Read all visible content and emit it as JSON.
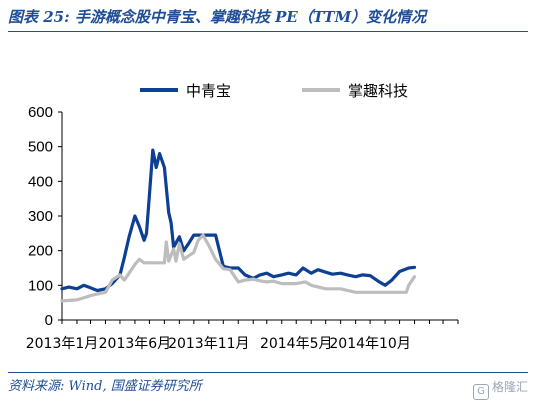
{
  "header": {
    "title": "图表 25:  手游概念股中青宝、掌趣科技 PE（TTM）变化情况"
  },
  "footer": {
    "source": "资料来源:  Wind,  国盛证券研究所",
    "watermark": "格隆汇",
    "watermark_logo": "G"
  },
  "chart_data": {
    "type": "line",
    "title": "",
    "xlabel": "",
    "ylabel": "",
    "ylim": [
      0,
      600
    ],
    "yticks": [
      0,
      100,
      200,
      300,
      400,
      500,
      600
    ],
    "xlim": [
      "2013-01-01",
      "2015-04-01"
    ],
    "xticks": [
      {
        "date": "2013-01-01",
        "label": "2013年1月"
      },
      {
        "date": "2013-06-01",
        "label": "2013年6月"
      },
      {
        "date": "2013-11-01",
        "label": "2013年11月"
      },
      {
        "date": "2014-05-01",
        "label": "2014年5月"
      },
      {
        "date": "2014-10-01",
        "label": "2014年10月"
      }
    ],
    "grid": false,
    "legend_position": "top",
    "series": [
      {
        "name": "中青宝",
        "color": "#0d3f93",
        "points": [
          [
            "2013-01-01",
            90
          ],
          [
            "2013-01-15",
            95
          ],
          [
            "2013-02-01",
            90
          ],
          [
            "2013-02-15",
            100
          ],
          [
            "2013-03-01",
            93
          ],
          [
            "2013-03-15",
            85
          ],
          [
            "2013-04-01",
            90
          ],
          [
            "2013-04-15",
            105
          ],
          [
            "2013-05-01",
            130
          ],
          [
            "2013-05-10",
            180
          ],
          [
            "2013-05-20",
            240
          ],
          [
            "2013-06-01",
            300
          ],
          [
            "2013-06-10",
            270
          ],
          [
            "2013-06-20",
            230
          ],
          [
            "2013-06-25",
            250
          ],
          [
            "2013-07-01",
            360
          ],
          [
            "2013-07-08",
            490
          ],
          [
            "2013-07-15",
            440
          ],
          [
            "2013-07-22",
            480
          ],
          [
            "2013-08-01",
            440
          ],
          [
            "2013-08-10",
            310
          ],
          [
            "2013-08-15",
            280
          ],
          [
            "2013-08-20",
            210
          ],
          [
            "2013-09-01",
            240
          ],
          [
            "2013-09-10",
            200
          ],
          [
            "2013-09-20",
            220
          ],
          [
            "2013-10-01",
            245
          ],
          [
            "2013-10-15",
            245
          ],
          [
            "2013-11-01",
            245
          ],
          [
            "2013-11-15",
            245
          ],
          [
            "2013-12-01",
            155
          ],
          [
            "2013-12-15",
            150
          ],
          [
            "2014-01-01",
            150
          ],
          [
            "2014-01-15",
            130
          ],
          [
            "2014-02-01",
            120
          ],
          [
            "2014-02-15",
            130
          ],
          [
            "2014-03-01",
            135
          ],
          [
            "2014-03-15",
            125
          ],
          [
            "2014-04-01",
            130
          ],
          [
            "2014-04-15",
            135
          ],
          [
            "2014-05-01",
            130
          ],
          [
            "2014-05-15",
            150
          ],
          [
            "2014-06-01",
            135
          ],
          [
            "2014-06-15",
            145
          ],
          [
            "2014-07-01",
            138
          ],
          [
            "2014-07-15",
            132
          ],
          [
            "2014-08-01",
            135
          ],
          [
            "2014-08-15",
            130
          ],
          [
            "2014-09-01",
            125
          ],
          [
            "2014-09-15",
            130
          ],
          [
            "2014-10-01",
            128
          ],
          [
            "2014-10-20",
            110
          ],
          [
            "2014-11-01",
            100
          ],
          [
            "2014-11-15",
            115
          ],
          [
            "2014-12-01",
            140
          ],
          [
            "2014-12-20",
            150
          ],
          [
            "2015-01-01",
            152
          ]
        ]
      },
      {
        "name": "掌趣科技",
        "color": "#bdbdbd",
        "points": [
          [
            "2013-01-01",
            55
          ],
          [
            "2013-02-01",
            58
          ],
          [
            "2013-03-01",
            70
          ],
          [
            "2013-03-15",
            75
          ],
          [
            "2013-04-01",
            80
          ],
          [
            "2013-04-15",
            115
          ],
          [
            "2013-05-01",
            130
          ],
          [
            "2013-05-10",
            115
          ],
          [
            "2013-05-20",
            135
          ],
          [
            "2013-06-01",
            160
          ],
          [
            "2013-06-10",
            175
          ],
          [
            "2013-06-20",
            165
          ],
          [
            "2013-07-01",
            165
          ],
          [
            "2013-07-15",
            165
          ],
          [
            "2013-08-01",
            165
          ],
          [
            "2013-08-05",
            225
          ],
          [
            "2013-08-10",
            170
          ],
          [
            "2013-08-20",
            205
          ],
          [
            "2013-08-25",
            170
          ],
          [
            "2013-09-01",
            220
          ],
          [
            "2013-09-10",
            175
          ],
          [
            "2013-09-20",
            185
          ],
          [
            "2013-10-01",
            195
          ],
          [
            "2013-10-10",
            230
          ],
          [
            "2013-10-20",
            245
          ],
          [
            "2013-11-01",
            215
          ],
          [
            "2013-11-15",
            175
          ],
          [
            "2013-12-01",
            148
          ],
          [
            "2013-12-15",
            145
          ],
          [
            "2014-01-01",
            110
          ],
          [
            "2014-01-15",
            115
          ],
          [
            "2014-02-01",
            118
          ],
          [
            "2014-02-15",
            113
          ],
          [
            "2014-03-01",
            110
          ],
          [
            "2014-03-15",
            112
          ],
          [
            "2014-04-01",
            105
          ],
          [
            "2014-05-01",
            105
          ],
          [
            "2014-05-20",
            110
          ],
          [
            "2014-06-01",
            100
          ],
          [
            "2014-07-01",
            90
          ],
          [
            "2014-08-01",
            90
          ],
          [
            "2014-09-01",
            80
          ],
          [
            "2014-10-01",
            80
          ],
          [
            "2014-11-01",
            80
          ],
          [
            "2014-12-01",
            80
          ],
          [
            "2014-12-15",
            80
          ],
          [
            "2014-12-20",
            100
          ],
          [
            "2015-01-01",
            125
          ]
        ]
      }
    ]
  }
}
